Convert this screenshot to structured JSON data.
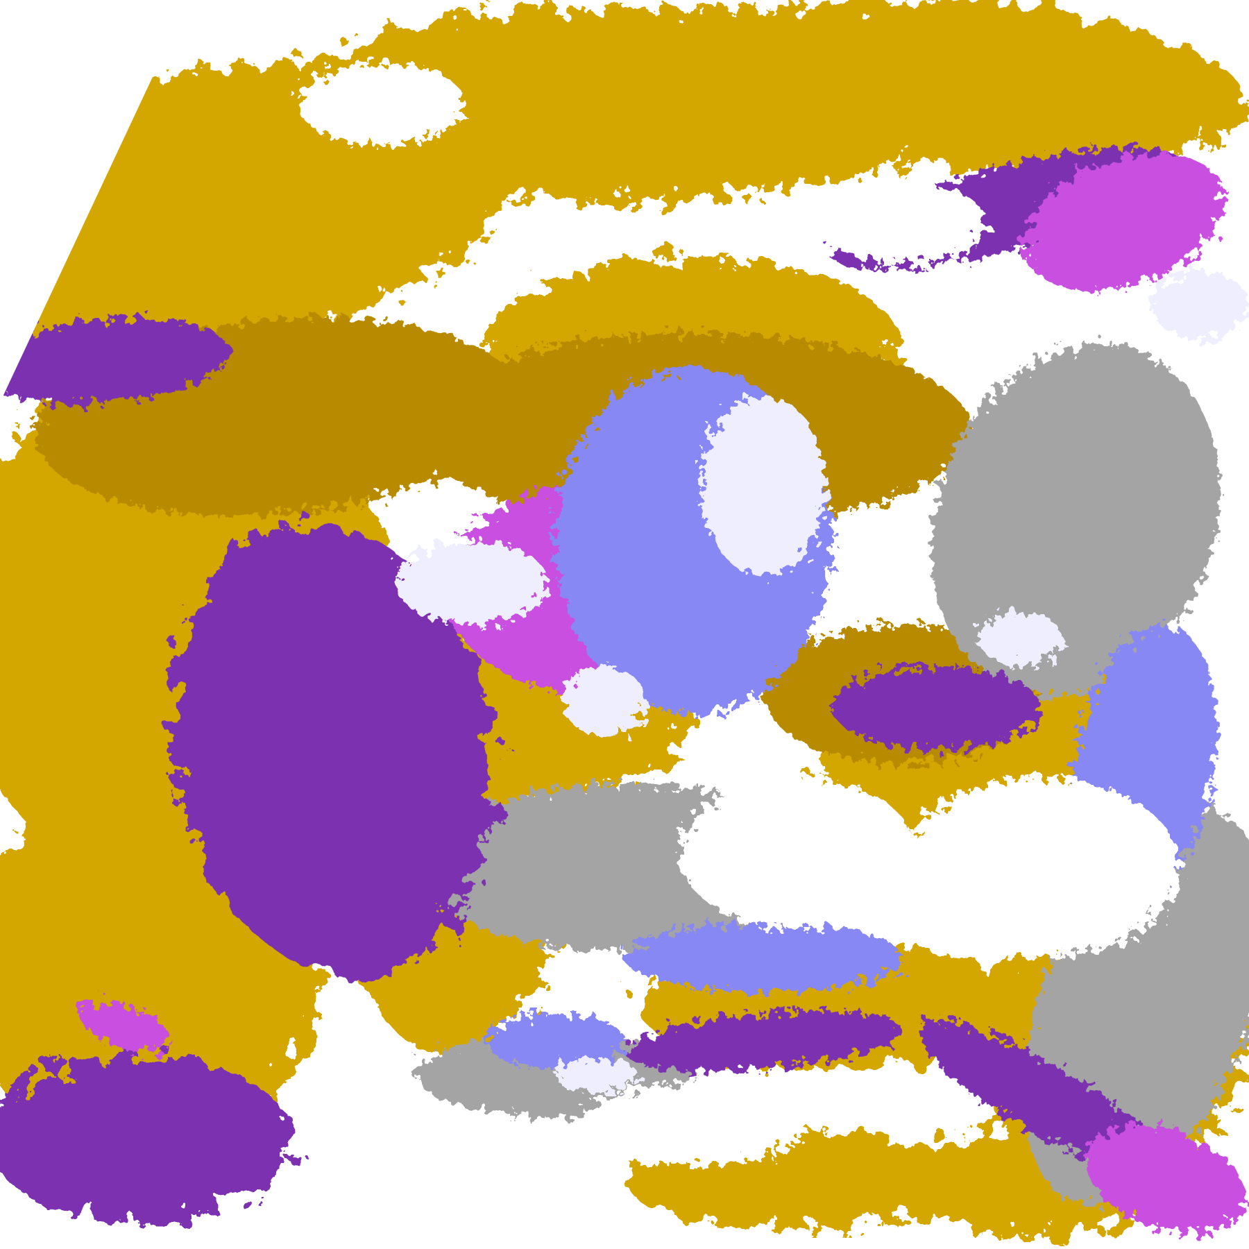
{
  "image": {
    "kind": "satellite cloud-classification composite",
    "colors": {
      "background": "#ffffff",
      "gold": "#d4a600",
      "dark_gold": "#b88a00",
      "purple": "#7b32b0",
      "magenta": "#c850e0",
      "periwinkle": "#8888f4",
      "lavender": "#eeeeff",
      "gray": "#a4a4a4"
    }
  }
}
